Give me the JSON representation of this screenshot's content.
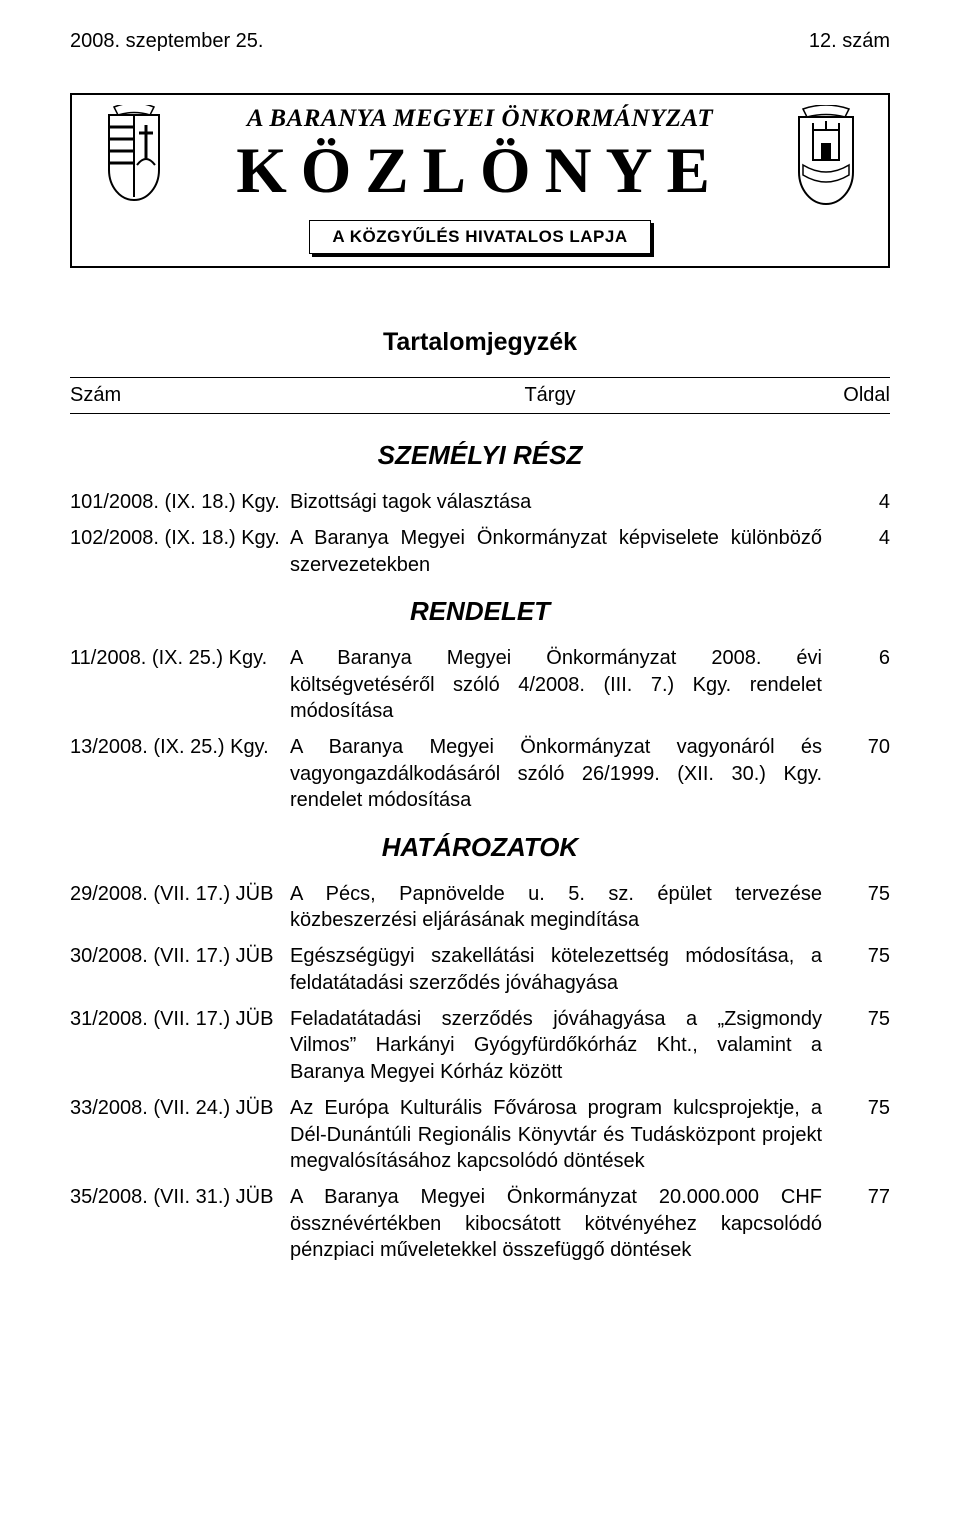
{
  "header": {
    "date_left": "2008. szeptember 25.",
    "issue_right": "12. szám",
    "title_line1": "A BARANYA MEGYEI ÖNKORMÁNYZAT",
    "title_line2": "KÖZLÖNYE",
    "subtitle": "A KÖZGYŰLÉS HIVATALOS LAPJA"
  },
  "toc": {
    "title": "Tartalomjegyzék",
    "col_headers": {
      "szam": "Szám",
      "targy": "Tárgy",
      "oldal": "Oldal"
    },
    "sections": [
      {
        "heading": "SZEMÉLYI RÉSZ",
        "rows": [
          {
            "szam": "101/2008. (IX. 18.) Kgy.",
            "targy": "Bizottsági tagok választása",
            "oldal": "4"
          },
          {
            "szam": "102/2008. (IX. 18.) Kgy.",
            "targy": "A Baranya Megyei Önkormányzat képviselete különböző szervezetekben",
            "oldal": "4"
          }
        ]
      },
      {
        "heading": "RENDELET",
        "rows": [
          {
            "szam": "11/2008. (IX. 25.) Kgy.",
            "targy": "A Baranya Megyei Önkormányzat 2008. évi költségvetéséről szóló 4/2008. (III. 7.) Kgy. rendelet módosítása",
            "oldal": "6"
          },
          {
            "szam": "13/2008. (IX. 25.) Kgy.",
            "targy": "A Baranya Megyei Önkormányzat vagyonáról és vagyongazdálkodásáról szóló 26/1999. (XII. 30.) Kgy. rendelet módosítása",
            "oldal": "70"
          }
        ]
      },
      {
        "heading": "HATÁROZATOK",
        "rows": [
          {
            "szam": "29/2008. (VII. 17.) JÜB",
            "targy": "A Pécs, Papnövelde u. 5. sz. épület tervezése közbeszerzési eljárásának megindítása",
            "oldal": "75"
          },
          {
            "szam": "30/2008. (VII. 17.) JÜB",
            "targy": "Egészségügyi szakellátási kötelezettség módosítása, a feldatátadási szerződés jóváhagyása",
            "oldal": "75"
          },
          {
            "szam": "31/2008. (VII. 17.) JÜB",
            "targy": "Feladatátadási szerződés jóváhagyása a „Zsigmondy Vilmos” Harkányi Gyógyfürdőkórház Kht., valamint a Baranya Megyei Kórház között",
            "oldal": "75"
          },
          {
            "szam": "33/2008. (VII. 24.) JÜB",
            "targy": "Az Európa Kulturális Fővárosa program kulcsprojektje, a Dél-Dunántúli Regionális Könyvtár és Tudásközpont projekt megvalósításához kapcsolódó döntések",
            "oldal": "75"
          },
          {
            "szam": "35/2008. (VII. 31.) JÜB",
            "targy": "A Baranya Megyei Önkormányzat 20.000.000 CHF össznévértékben kibocsátott kötvényéhez kapcsolódó pénzpiaci műveletekkel összefüggő döntések",
            "oldal": "77"
          }
        ]
      }
    ]
  }
}
